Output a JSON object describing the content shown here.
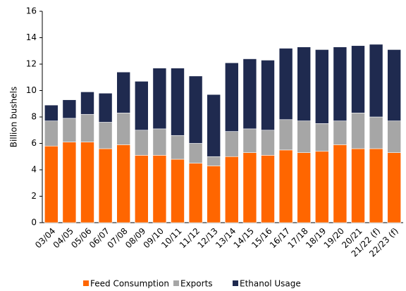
{
  "chart_data": {
    "type": "stacked_bar",
    "y_label": "Billion  bushels",
    "categories": [
      "03/04",
      "04/05",
      "05/06",
      "06/07",
      "07/08",
      "08/09",
      "09/10",
      "10/11",
      "11/12",
      "12/13",
      "13/14",
      "14/15",
      "15/16",
      "16/17",
      "17/18",
      "18/19",
      "19/20",
      "20/21",
      "21/22 (f)",
      "22/23 (f)"
    ],
    "series": [
      {
        "name": "Feed Consumption",
        "color": "#ff6600",
        "values": [
          5.8,
          6.1,
          6.1,
          5.6,
          5.9,
          5.1,
          5.1,
          4.8,
          4.5,
          4.3,
          5.0,
          5.3,
          5.1,
          5.5,
          5.3,
          5.4,
          5.9,
          5.6,
          5.6,
          5.3
        ]
      },
      {
        "name": "Exports",
        "color": "#a6a6a6",
        "values": [
          1.9,
          1.8,
          2.1,
          2.0,
          2.4,
          1.9,
          2.0,
          1.8,
          1.5,
          0.7,
          1.9,
          1.8,
          1.9,
          2.3,
          2.4,
          2.1,
          1.8,
          2.7,
          2.4,
          2.4
        ]
      },
      {
        "name": "Ethanol Usage",
        "color": "#1f2a4f",
        "values": [
          1.2,
          1.4,
          1.7,
          2.2,
          3.1,
          3.7,
          4.6,
          5.1,
          5.1,
          4.7,
          5.2,
          5.3,
          5.3,
          5.4,
          5.6,
          5.6,
          5.6,
          5.1,
          5.5,
          5.4
        ]
      }
    ],
    "ylim": [
      0,
      16
    ],
    "yticks": [
      0,
      2,
      4,
      6,
      8,
      10,
      12,
      14,
      16
    ],
    "legend": "bottom"
  }
}
